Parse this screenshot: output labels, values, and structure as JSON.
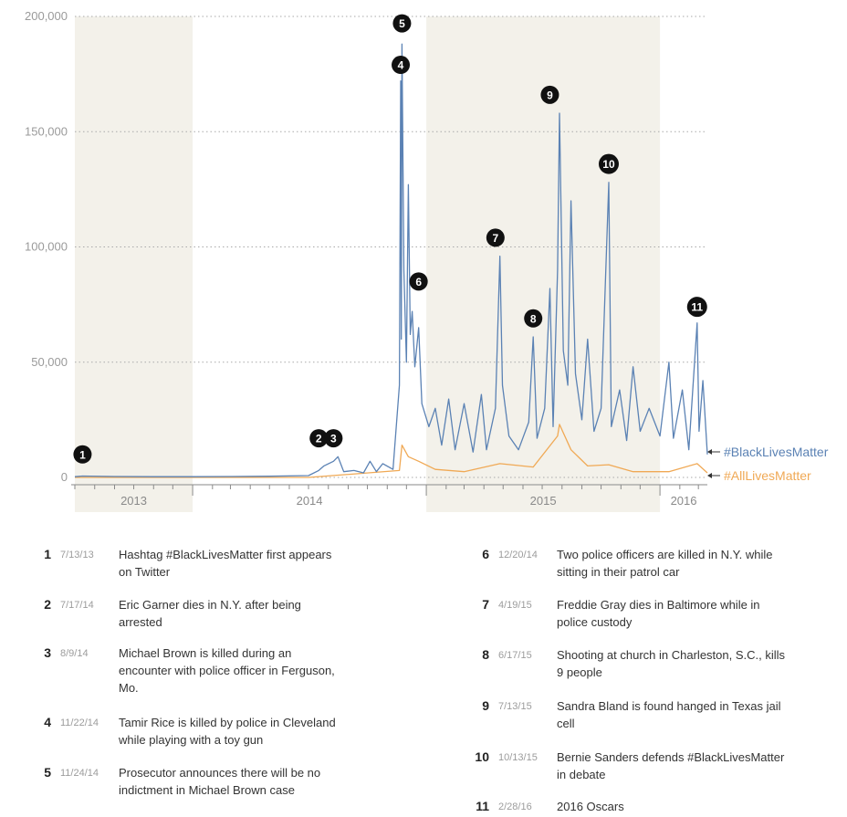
{
  "chart_data": {
    "type": "line",
    "title": "",
    "xlabel": "",
    "ylabel": "",
    "y_ticks": [
      "200,000",
      "150,000",
      "100,000",
      "50,000",
      "0"
    ],
    "ylim": [
      0,
      200000
    ],
    "x_ticks": [
      "2013",
      "2014",
      "2015",
      "2016"
    ],
    "xlim": [
      "2013-07-01",
      "2016-03-15"
    ],
    "grid": "horizontal dotted",
    "shaded_periods": [
      [
        "2013-07-01",
        "2014-01-01"
      ],
      [
        "2015-01-01",
        "2016-01-01"
      ]
    ],
    "series": [
      {
        "name": "#BlackLivesMatter",
        "color": "#5b82b4",
        "points": [
          [
            "2013-07-01",
            300
          ],
          [
            "2013-07-13",
            600
          ],
          [
            "2013-09-01",
            400
          ],
          [
            "2013-11-01",
            300
          ],
          [
            "2014-01-01",
            300
          ],
          [
            "2014-03-01",
            400
          ],
          [
            "2014-05-01",
            500
          ],
          [
            "2014-07-01",
            800
          ],
          [
            "2014-07-17",
            3000
          ],
          [
            "2014-07-25",
            5000
          ],
          [
            "2014-08-09",
            7000
          ],
          [
            "2014-08-16",
            9000
          ],
          [
            "2014-08-25",
            2500
          ],
          [
            "2014-09-10",
            3000
          ],
          [
            "2014-09-25",
            2000
          ],
          [
            "2014-10-05",
            7000
          ],
          [
            "2014-10-15",
            2500
          ],
          [
            "2014-10-25",
            6000
          ],
          [
            "2014-11-10",
            3500
          ],
          [
            "2014-11-20",
            40000
          ],
          [
            "2014-11-22",
            172000
          ],
          [
            "2014-11-23",
            60000
          ],
          [
            "2014-11-24",
            188000
          ],
          [
            "2014-11-27",
            90000
          ],
          [
            "2014-12-01",
            50000
          ],
          [
            "2014-12-04",
            127000
          ],
          [
            "2014-12-07",
            62000
          ],
          [
            "2014-12-10",
            72000
          ],
          [
            "2014-12-14",
            48000
          ],
          [
            "2014-12-20",
            65000
          ],
          [
            "2014-12-25",
            32000
          ],
          [
            "2015-01-05",
            22000
          ],
          [
            "2015-01-15",
            30000
          ],
          [
            "2015-01-25",
            14000
          ],
          [
            "2015-02-05",
            34000
          ],
          [
            "2015-02-15",
            12000
          ],
          [
            "2015-03-01",
            32000
          ],
          [
            "2015-03-15",
            11000
          ],
          [
            "2015-03-28",
            36000
          ],
          [
            "2015-04-05",
            12000
          ],
          [
            "2015-04-19",
            30000
          ],
          [
            "2015-04-26",
            96000
          ],
          [
            "2015-04-30",
            40000
          ],
          [
            "2015-05-10",
            18000
          ],
          [
            "2015-05-25",
            12000
          ],
          [
            "2015-06-10",
            24000
          ],
          [
            "2015-06-17",
            61000
          ],
          [
            "2015-06-23",
            17000
          ],
          [
            "2015-07-05",
            30000
          ],
          [
            "2015-07-13",
            82000
          ],
          [
            "2015-07-18",
            22000
          ],
          [
            "2015-07-25",
            90000
          ],
          [
            "2015-07-28",
            158000
          ],
          [
            "2015-08-03",
            55000
          ],
          [
            "2015-08-10",
            40000
          ],
          [
            "2015-08-15",
            120000
          ],
          [
            "2015-08-22",
            45000
          ],
          [
            "2015-09-01",
            25000
          ],
          [
            "2015-09-10",
            60000
          ],
          [
            "2015-09-20",
            20000
          ],
          [
            "2015-10-01",
            30000
          ],
          [
            "2015-10-13",
            128000
          ],
          [
            "2015-10-17",
            22000
          ],
          [
            "2015-10-30",
            38000
          ],
          [
            "2015-11-10",
            16000
          ],
          [
            "2015-11-20",
            48000
          ],
          [
            "2015-12-01",
            20000
          ],
          [
            "2015-12-15",
            30000
          ],
          [
            "2016-01-01",
            18000
          ],
          [
            "2016-01-15",
            50000
          ],
          [
            "2016-01-22",
            17000
          ],
          [
            "2016-02-05",
            38000
          ],
          [
            "2016-02-15",
            12000
          ],
          [
            "2016-02-28",
            67000
          ],
          [
            "2016-03-02",
            20000
          ],
          [
            "2016-03-08",
            42000
          ],
          [
            "2016-03-15",
            10000
          ]
        ]
      },
      {
        "name": "#AllLivesMatter",
        "color": "#f0a955",
        "points": [
          [
            "2013-07-01",
            0
          ],
          [
            "2014-07-01",
            0
          ],
          [
            "2014-11-20",
            3000
          ],
          [
            "2014-11-24",
            14000
          ],
          [
            "2014-12-04",
            9000
          ],
          [
            "2014-12-20",
            7000
          ],
          [
            "2015-01-15",
            3500
          ],
          [
            "2015-03-01",
            2500
          ],
          [
            "2015-04-26",
            6000
          ],
          [
            "2015-06-17",
            4500
          ],
          [
            "2015-07-25",
            18000
          ],
          [
            "2015-07-28",
            23000
          ],
          [
            "2015-08-15",
            12000
          ],
          [
            "2015-09-10",
            5000
          ],
          [
            "2015-10-13",
            5500
          ],
          [
            "2015-11-20",
            2500
          ],
          [
            "2016-01-15",
            2500
          ],
          [
            "2016-02-28",
            6000
          ],
          [
            "2016-03-15",
            2000
          ]
        ]
      }
    ],
    "markers": [
      {
        "num": "1",
        "x": "2013-07-13",
        "y": 10000
      },
      {
        "num": "2",
        "x": "2014-07-17",
        "y": 17000
      },
      {
        "num": "3",
        "x": "2014-08-09",
        "y": 17000
      },
      {
        "num": "4",
        "x": "2014-11-22",
        "y": 179000
      },
      {
        "num": "5",
        "x": "2014-11-24",
        "y": 197000
      },
      {
        "num": "6",
        "x": "2014-12-20",
        "y": 85000
      },
      {
        "num": "7",
        "x": "2015-04-19",
        "y": 104000
      },
      {
        "num": "8",
        "x": "2015-06-17",
        "y": 69000
      },
      {
        "num": "9",
        "x": "2015-07-13",
        "y": 166000
      },
      {
        "num": "10",
        "x": "2015-10-13",
        "y": 136000
      },
      {
        "num": "11",
        "x": "2016-02-28",
        "y": 74000
      }
    ]
  },
  "events": [
    {
      "num": "1",
      "date": "7/13/13",
      "text": "Hashtag #BlackLivesMatter first appears on Twitter"
    },
    {
      "num": "2",
      "date": "7/17/14",
      "text": "Eric Garner dies in N.Y. after being arrested"
    },
    {
      "num": "3",
      "date": "8/9/14",
      "text": "Michael Brown is killed during an encounter with police officer in Ferguson, Mo."
    },
    {
      "num": "4",
      "date": "11/22/14",
      "text": "Tamir Rice is killed by police in Cleveland while playing with a toy gun"
    },
    {
      "num": "5",
      "date": "11/24/14",
      "text": "Prosecutor announces there will be no indictment in Michael Brown case"
    },
    {
      "num": "6",
      "date": "12/20/14",
      "text": "Two police officers are killed in N.Y. while sitting in their patrol car"
    },
    {
      "num": "7",
      "date": "4/19/15",
      "text": "Freddie Gray dies in Baltimore while in police custody"
    },
    {
      "num": "8",
      "date": "6/17/15",
      "text": "Shooting at church in Charleston, S.C., kills 9 people"
    },
    {
      "num": "9",
      "date": "7/13/15",
      "text": "Sandra Bland is found hanged in Texas jail cell"
    },
    {
      "num": "10",
      "date": "10/13/15",
      "text": "Bernie Sanders defends #BlackLivesMatter in debate"
    },
    {
      "num": "11",
      "date": "2/28/16",
      "text": "2016 Oscars"
    }
  ]
}
